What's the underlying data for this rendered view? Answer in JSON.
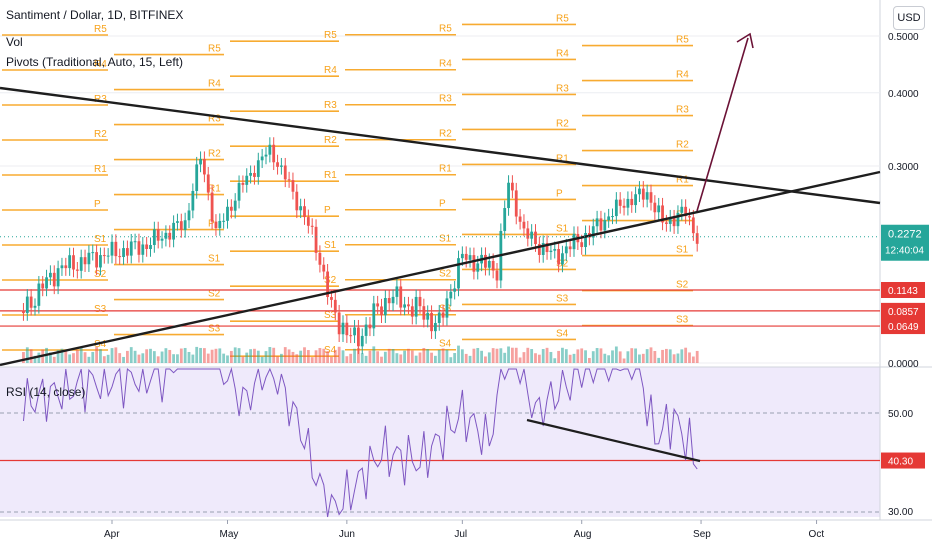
{
  "legend": {
    "symbol": "Santiment / Dollar, 1D, BITFINEX",
    "vol": "Vol",
    "pivots": "Pivots (Traditional, Auto, 15, Left)",
    "rsi": "RSI (14, close)"
  },
  "currency_button": "USD",
  "price_badge": {
    "price": "0.2272",
    "countdown": "12:40:04"
  },
  "colors": {
    "up": "#26a69a",
    "down": "#ef5350",
    "pivot": "#f7a21b",
    "level": "#e53935",
    "rsi_line": "#7e57c2",
    "rsi_bg": "#efeafb",
    "trend": "#1e1e1e",
    "arrow": "#6b1236"
  },
  "chart_data": [
    {
      "type": "candlestick",
      "title": "Santiment / Dollar, 1D, BITFINEX",
      "x_axis": {
        "ticks": [
          "Apr",
          "May",
          "Jun",
          "Jul",
          "Aug",
          "Sep",
          "Oct"
        ]
      },
      "y_axis": {
        "ticks": [
          "0.5000",
          "0.4000",
          "0.3000",
          "0.0000"
        ],
        "scale": "log"
      },
      "price_levels": [
        "0.1143",
        "0.0857",
        "0.0649"
      ],
      "last_price": "0.2272",
      "close_path": [
        {
          "x": "Mar 9",
          "y": 0.17
        },
        {
          "x": "Mar 18",
          "y": 0.2
        },
        {
          "x": "Mar 28",
          "y": 0.21
        },
        {
          "x": "Apr 10",
          "y": 0.22
        },
        {
          "x": "Apr 20",
          "y": 0.24
        },
        {
          "x": "Apr 24",
          "y": 0.31
        },
        {
          "x": "Apr 28",
          "y": 0.23
        },
        {
          "x": "May 5",
          "y": 0.28
        },
        {
          "x": "May 12",
          "y": 0.32
        },
        {
          "x": "May 18",
          "y": 0.27
        },
        {
          "x": "May 24",
          "y": 0.22
        },
        {
          "x": "May 28",
          "y": 0.17
        },
        {
          "x": "Jun 3",
          "y": 0.15
        },
        {
          "x": "Jun 12",
          "y": 0.18
        },
        {
          "x": "Jun 20",
          "y": 0.17
        },
        {
          "x": "Jun 25",
          "y": 0.16
        },
        {
          "x": "Jul 1",
          "y": 0.21
        },
        {
          "x": "Jul 10",
          "y": 0.2
        },
        {
          "x": "Jul 13",
          "y": 0.28
        },
        {
          "x": "Jul 17",
          "y": 0.23
        },
        {
          "x": "Jul 25",
          "y": 0.21
        },
        {
          "x": "Aug 3",
          "y": 0.23
        },
        {
          "x": "Aug 12",
          "y": 0.26
        },
        {
          "x": "Aug 18",
          "y": 0.27
        },
        {
          "x": "Aug 22",
          "y": 0.24
        },
        {
          "x": "Aug 28",
          "y": 0.25
        },
        {
          "x": "Aug 31",
          "y": 0.227
        }
      ],
      "pivot_labels": [
        "R5",
        "R4",
        "R3",
        "R2",
        "R1",
        "P",
        "S1",
        "S2",
        "S3",
        "S4"
      ],
      "annotations": [
        "two converging trendlines (triangle)",
        "arrow projecting upward breakout"
      ]
    },
    {
      "type": "line",
      "title": "RSI (14, close)",
      "y_axis": {
        "ticks": [
          "50.00",
          "30.00"
        ]
      },
      "level_label": "40.30",
      "points": [
        {
          "x": "Mar 9",
          "y": 52
        },
        {
          "x": "Mar 25",
          "y": 56
        },
        {
          "x": "Apr 15",
          "y": 58
        },
        {
          "x": "Apr 24",
          "y": 68
        },
        {
          "x": "May 5",
          "y": 52
        },
        {
          "x": "May 12",
          "y": 60
        },
        {
          "x": "May 20",
          "y": 47
        },
        {
          "x": "May 24",
          "y": 37
        },
        {
          "x": "May 28",
          "y": 30
        },
        {
          "x": "Jun 1",
          "y": 33
        },
        {
          "x": "Jun 10",
          "y": 42
        },
        {
          "x": "Jun 20",
          "y": 40
        },
        {
          "x": "Jul 1",
          "y": 50
        },
        {
          "x": "Jul 8",
          "y": 44
        },
        {
          "x": "Jul 13",
          "y": 66
        },
        {
          "x": "Jul 20",
          "y": 50
        },
        {
          "x": "Aug 3",
          "y": 60
        },
        {
          "x": "Aug 15",
          "y": 62
        },
        {
          "x": "Aug 20",
          "y": 45
        },
        {
          "x": "Aug 25",
          "y": 49
        },
        {
          "x": "Aug 31",
          "y": 40.3
        }
      ],
      "annotations": [
        "descending trendline on RSI"
      ]
    }
  ]
}
